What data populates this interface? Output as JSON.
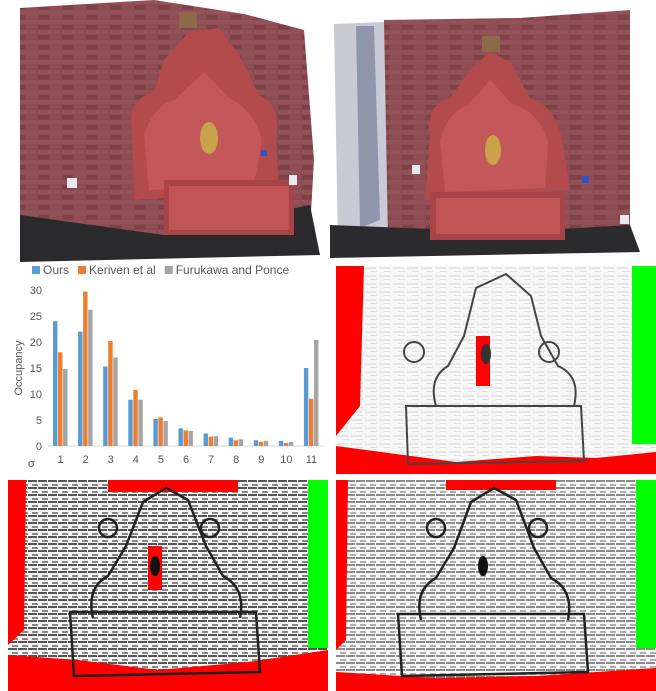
{
  "figure": {
    "panels": [
      {
        "name": "reconstruction-view-1"
      },
      {
        "name": "reconstruction-view-2"
      },
      {
        "name": "occupancy-chart"
      },
      {
        "name": "error-map-1"
      },
      {
        "name": "error-map-2"
      },
      {
        "name": "error-map-3"
      }
    ]
  },
  "colors": {
    "ours": "#5b9bd5",
    "keriven": "#ed7d31",
    "furukawa": "#a5a5a5",
    "map_red": "#ff0000",
    "map_green": "#00ff00"
  },
  "chart_data": {
    "type": "bar",
    "categories": [
      "1",
      "2",
      "3",
      "4",
      "5",
      "6",
      "7",
      "8",
      "9",
      "10",
      "11"
    ],
    "series": [
      {
        "name": "Ours",
        "values": [
          24,
          22,
          15.3,
          8.9,
          5.2,
          3.4,
          2.4,
          1.6,
          1.1,
          1.0,
          15
        ]
      },
      {
        "name": "Keriven et al",
        "values": [
          18,
          29.7,
          20.2,
          10.8,
          5.5,
          3.0,
          1.8,
          1.1,
          0.8,
          0.6,
          9.1
        ]
      },
      {
        "name": "Furukawa and Ponce",
        "values": [
          14.8,
          26.2,
          17,
          8.9,
          4.8,
          2.9,
          1.9,
          1.3,
          1.0,
          0.8,
          20.4
        ]
      }
    ],
    "xlabel": "σ",
    "ylabel": "Occupancy",
    "ylim": [
      0,
      30
    ],
    "yticks": [
      "0",
      "5",
      "10",
      "15",
      "20",
      "25",
      "30"
    ],
    "legend_position": "top",
    "grid": false
  }
}
